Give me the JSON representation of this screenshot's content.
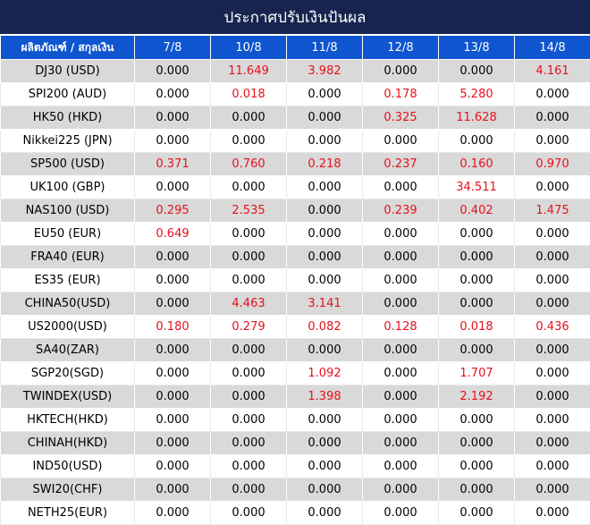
{
  "title": "ประกาศปรับเงินปันผล",
  "header": {
    "product_label": "ผลิตภัณฑ์ / สกุลเงิน",
    "dates": [
      "7/8",
      "10/8",
      "11/8",
      "12/8",
      "13/8",
      "14/8"
    ]
  },
  "colors": {
    "title_bg": "#16244f",
    "header_bg": "#0e55cf",
    "stripe": "#d9d9d9",
    "positive": "#e8101a"
  },
  "rows": [
    {
      "product": "DJ30 (USD)",
      "values": [
        "0.000",
        "11.649",
        "3.982",
        "0.000",
        "0.000",
        "4.161"
      ]
    },
    {
      "product": "SPI200 (AUD)",
      "values": [
        "0.000",
        "0.018",
        "0.000",
        "0.178",
        "5.280",
        "0.000"
      ]
    },
    {
      "product": "HK50 (HKD)",
      "values": [
        "0.000",
        "0.000",
        "0.000",
        "0.325",
        "11.628",
        "0.000"
      ]
    },
    {
      "product": "Nikkei225 (JPN)",
      "values": [
        "0.000",
        "0.000",
        "0.000",
        "0.000",
        "0.000",
        "0.000"
      ]
    },
    {
      "product": "SP500 (USD)",
      "values": [
        "0.371",
        "0.760",
        "0.218",
        "0.237",
        "0.160",
        "0.970"
      ]
    },
    {
      "product": "UK100 (GBP)",
      "values": [
        "0.000",
        "0.000",
        "0.000",
        "0.000",
        "34.511",
        "0.000"
      ]
    },
    {
      "product": "NAS100 (USD)",
      "values": [
        "0.295",
        "2.535",
        "0.000",
        "0.239",
        "0.402",
        "1.475"
      ]
    },
    {
      "product": "EU50 (EUR)",
      "values": [
        "0.649",
        "0.000",
        "0.000",
        "0.000",
        "0.000",
        "0.000"
      ]
    },
    {
      "product": "FRA40 (EUR)",
      "values": [
        "0.000",
        "0.000",
        "0.000",
        "0.000",
        "0.000",
        "0.000"
      ]
    },
    {
      "product": "ES35 (EUR)",
      "values": [
        "0.000",
        "0.000",
        "0.000",
        "0.000",
        "0.000",
        "0.000"
      ]
    },
    {
      "product": "CHINA50(USD)",
      "values": [
        "0.000",
        "4.463",
        "3.141",
        "0.000",
        "0.000",
        "0.000"
      ]
    },
    {
      "product": "US2000(USD)",
      "values": [
        "0.180",
        "0.279",
        "0.082",
        "0.128",
        "0.018",
        "0.436"
      ]
    },
    {
      "product": "SA40(ZAR)",
      "values": [
        "0.000",
        "0.000",
        "0.000",
        "0.000",
        "0.000",
        "0.000"
      ]
    },
    {
      "product": "SGP20(SGD)",
      "values": [
        "0.000",
        "0.000",
        "1.092",
        "0.000",
        "1.707",
        "0.000"
      ]
    },
    {
      "product": "TWINDEX(USD)",
      "values": [
        "0.000",
        "0.000",
        "1.398",
        "0.000",
        "2.192",
        "0.000"
      ]
    },
    {
      "product": "HKTECH(HKD)",
      "values": [
        "0.000",
        "0.000",
        "0.000",
        "0.000",
        "0.000",
        "0.000"
      ]
    },
    {
      "product": "CHINAH(HKD)",
      "values": [
        "0.000",
        "0.000",
        "0.000",
        "0.000",
        "0.000",
        "0.000"
      ]
    },
    {
      "product": "IND50(USD)",
      "values": [
        "0.000",
        "0.000",
        "0.000",
        "0.000",
        "0.000",
        "0.000"
      ]
    },
    {
      "product": "SWI20(CHF)",
      "values": [
        "0.000",
        "0.000",
        "0.000",
        "0.000",
        "0.000",
        "0.000"
      ]
    },
    {
      "product": "NETH25(EUR)",
      "values": [
        "0.000",
        "0.000",
        "0.000",
        "0.000",
        "0.000",
        "0.000"
      ]
    }
  ]
}
